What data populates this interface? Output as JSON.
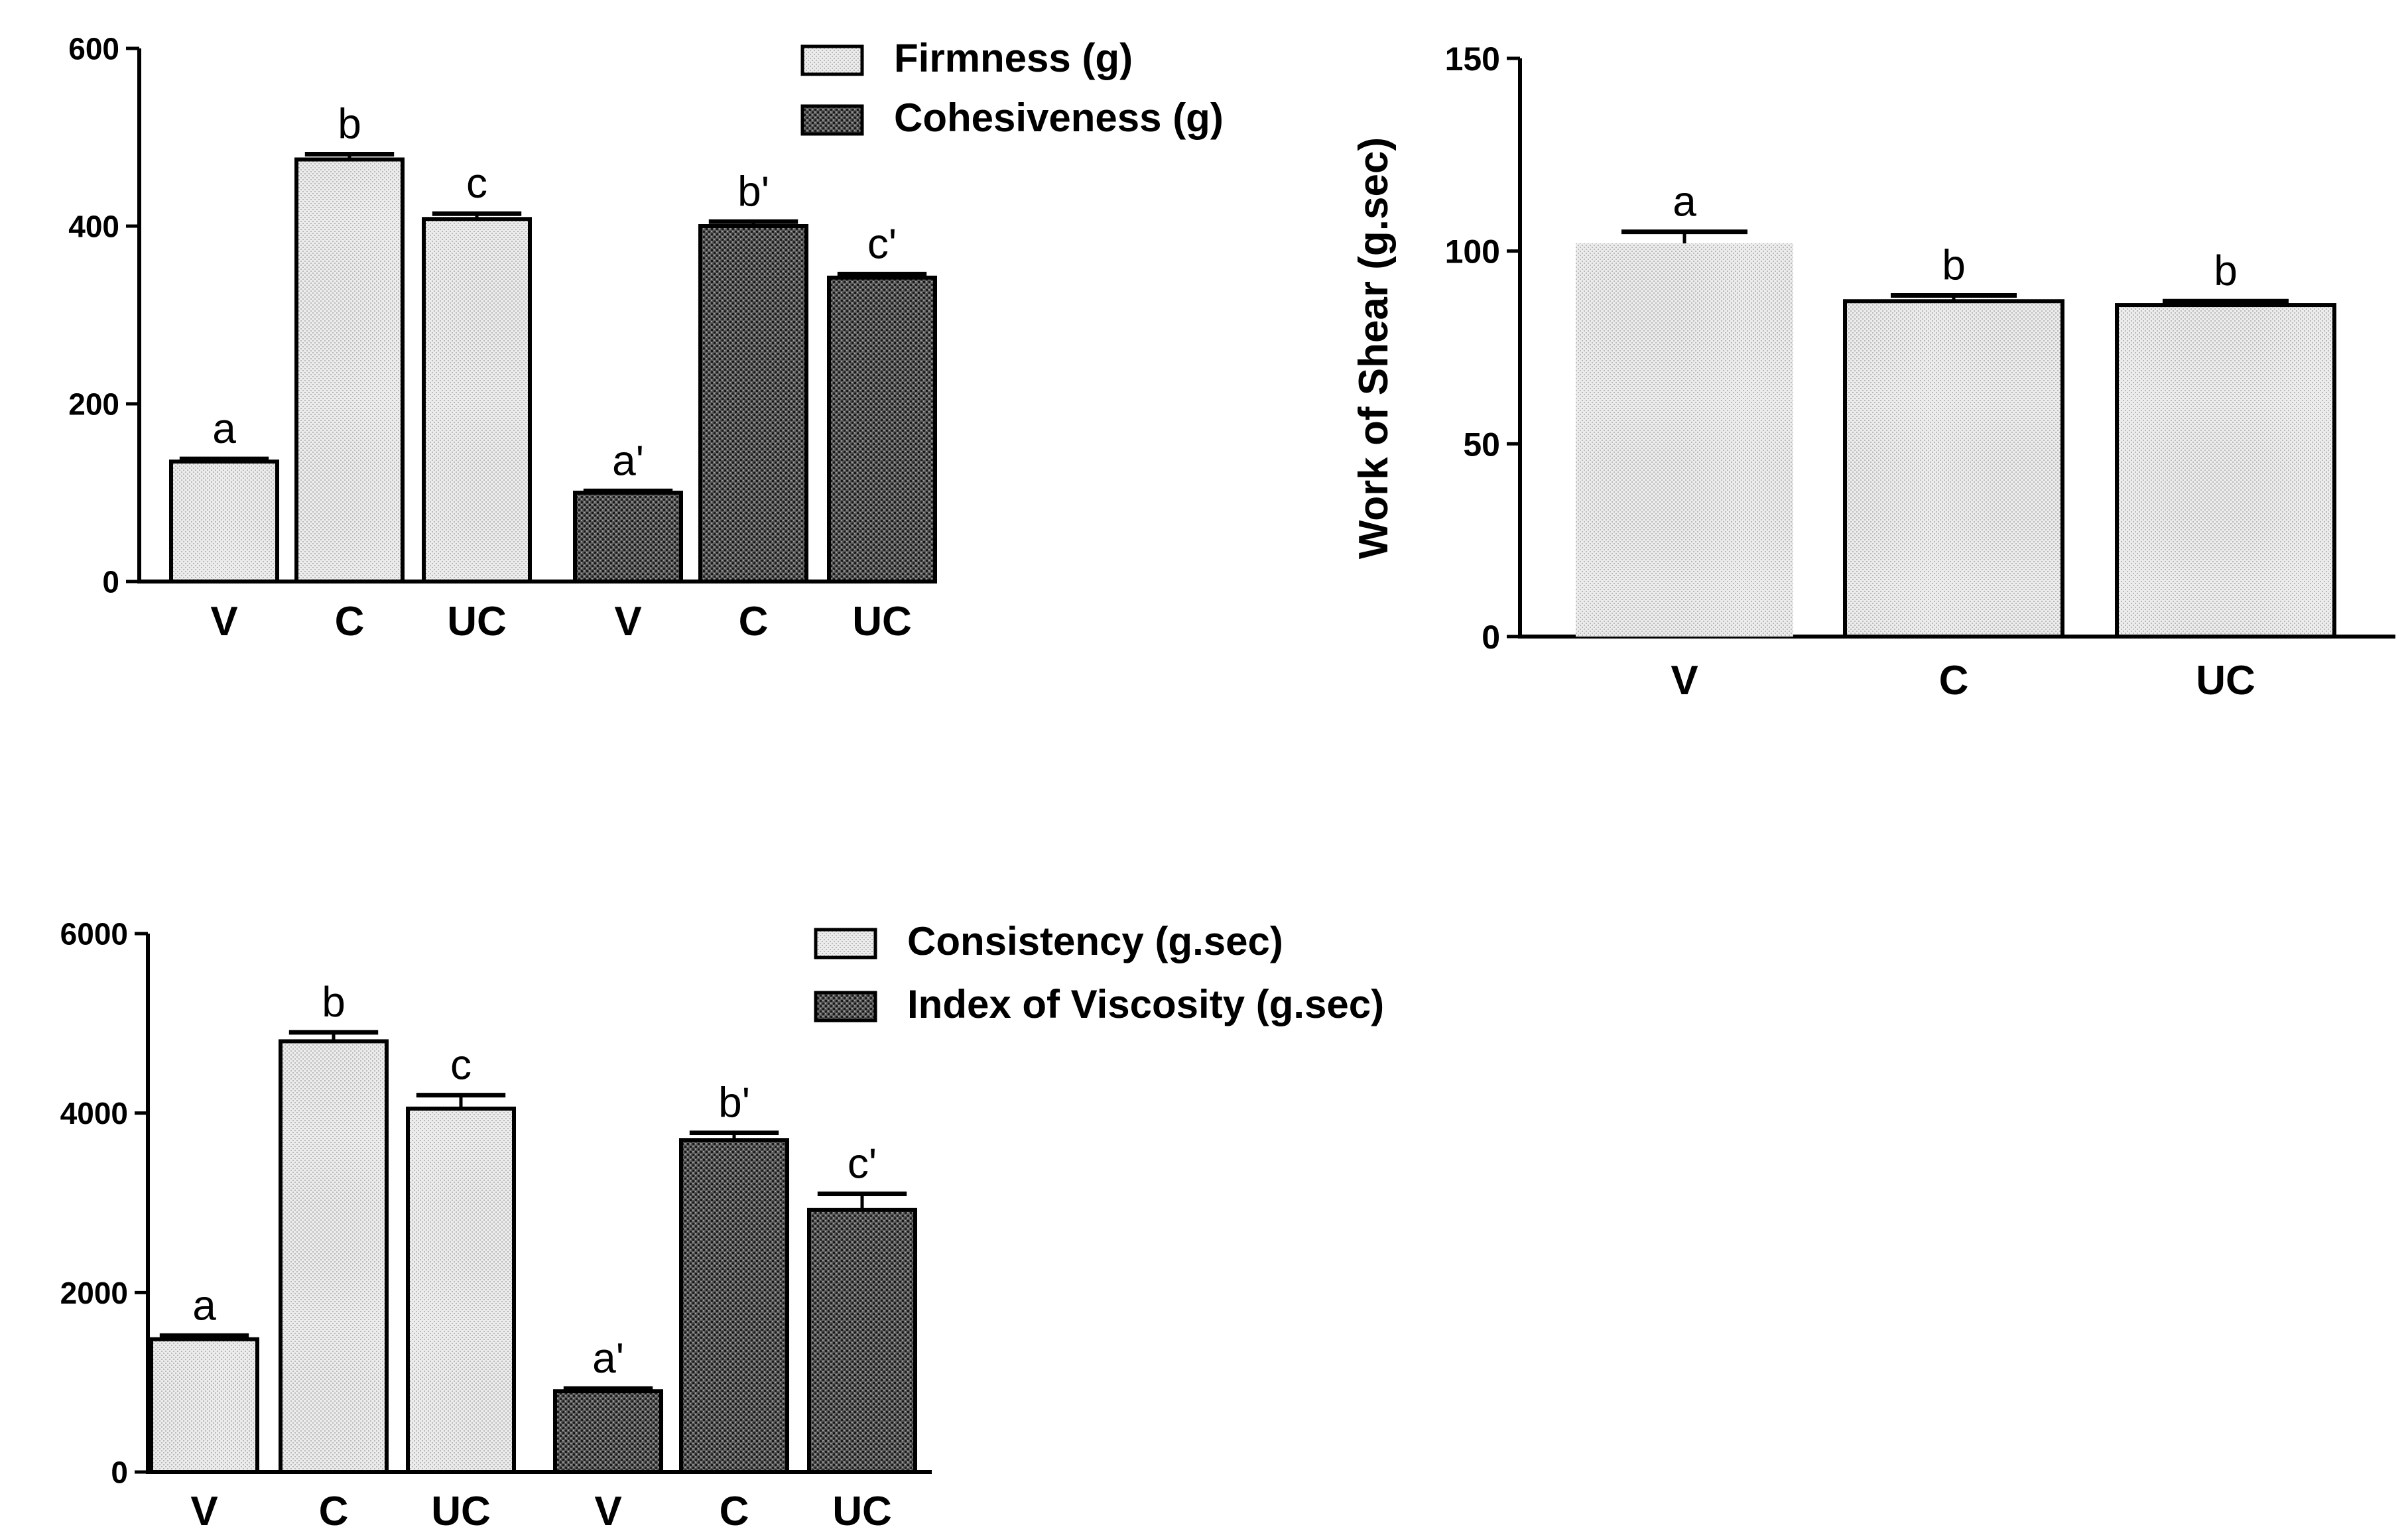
{
  "chart_data": [
    {
      "id": "firmness_cohesiveness",
      "type": "bar",
      "title": "",
      "xlabel": "",
      "ylabel": "",
      "ylim": [
        0,
        600
      ],
      "yticks": [
        "0",
        "200",
        "400",
        "600"
      ],
      "tick_values": [
        0,
        200,
        400,
        600
      ],
      "legend_position": "top-right",
      "series": [
        {
          "name": "Firmness (g)",
          "pattern": "light",
          "categories": [
            "V",
            "C",
            "UC"
          ],
          "values": [
            135,
            475,
            408
          ],
          "errors": [
            3,
            6,
            6
          ],
          "letters": [
            "a",
            "b",
            "c"
          ]
        },
        {
          "name": "Cohesiveness (g)",
          "pattern": "dark",
          "categories": [
            "V",
            "C",
            "UC"
          ],
          "values": [
            100,
            400,
            342
          ],
          "errors": [
            2,
            5,
            4
          ],
          "letters": [
            "a'",
            "b'",
            "c'"
          ]
        }
      ]
    },
    {
      "id": "work_of_shear",
      "type": "bar",
      "title": "",
      "xlabel": "",
      "ylabel": "Work of Shear (g.sec)",
      "ylim": [
        0,
        150
      ],
      "yticks": [
        "0",
        "50",
        "100",
        "150"
      ],
      "tick_values": [
        0,
        50,
        100,
        150
      ],
      "series": [
        {
          "name": "Work of Shear",
          "pattern": "light",
          "categories": [
            "V",
            "C",
            "UC"
          ],
          "values": [
            102,
            87,
            86
          ],
          "errors": [
            3,
            1.5,
            1
          ],
          "letters": [
            "a",
            "b",
            "b"
          ]
        }
      ]
    },
    {
      "id": "consistency_viscosity",
      "type": "bar",
      "title": "",
      "xlabel": "",
      "ylabel": "",
      "ylim": [
        0,
        6000
      ],
      "yticks": [
        "0",
        "2000",
        "4000",
        "6000"
      ],
      "tick_values": [
        0,
        2000,
        4000,
        6000
      ],
      "legend_position": "top-right",
      "series": [
        {
          "name": "Consistency (g.sec)",
          "pattern": "light",
          "categories": [
            "V",
            "C",
            "UC"
          ],
          "values": [
            1480,
            4800,
            4050
          ],
          "errors": [
            40,
            100,
            150
          ],
          "letters": [
            "a",
            "b",
            "c"
          ]
        },
        {
          "name": "Index of Viscosity (g.sec)",
          "pattern": "dark",
          "categories": [
            "V",
            "C",
            "UC"
          ],
          "values": [
            900,
            3700,
            2920
          ],
          "errors": [
            30,
            80,
            180
          ],
          "letters": [
            "a'",
            "b'",
            "c'"
          ]
        }
      ]
    }
  ]
}
